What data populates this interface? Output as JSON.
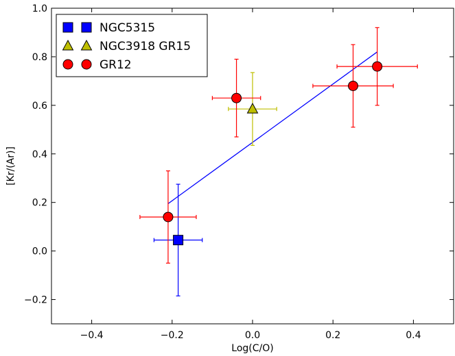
{
  "chart_data": {
    "type": "scatter",
    "xlabel": "Log(C/O)",
    "ylabel": "[Kr/(Ar)]",
    "xlim": [
      -0.5,
      0.5
    ],
    "ylim": [
      -0.3,
      1.0
    ],
    "xticks": [
      -0.4,
      -0.2,
      0.0,
      0.2,
      0.4
    ],
    "xtick_labels": [
      "−0.4",
      "−0.2",
      "0.0",
      "0.2",
      "0.4"
    ],
    "yticks": [
      -0.2,
      0.0,
      0.2,
      0.4,
      0.6,
      0.8,
      1.0
    ],
    "ytick_labels": [
      "−0.2",
      "0.0",
      "0.2",
      "0.4",
      "0.6",
      "0.8",
      "1.0"
    ],
    "grid": false,
    "legend_position": "top-left",
    "series": [
      {
        "name": "NGC5315",
        "marker": "square",
        "color": "#0000ff",
        "points": [
          {
            "x": -0.185,
            "y": 0.045,
            "xerr": 0.06,
            "yerr_low": 0.23,
            "yerr_high": 0.23
          }
        ]
      },
      {
        "name": "NGC3918 GR15",
        "marker": "triangle",
        "color": "#bfbf00",
        "points": [
          {
            "x": 0.0,
            "y": 0.585,
            "xerr": 0.06,
            "yerr_low": 0.15,
            "yerr_high": 0.15
          }
        ]
      },
      {
        "name": "GR12",
        "marker": "circle",
        "color": "#ff0000",
        "points": [
          {
            "x": -0.21,
            "y": 0.14,
            "xerr": 0.07,
            "yerr_low": 0.19,
            "yerr_high": 0.19
          },
          {
            "x": -0.04,
            "y": 0.63,
            "xerr": 0.06,
            "yerr_low": 0.16,
            "yerr_high": 0.16
          },
          {
            "x": 0.25,
            "y": 0.68,
            "xerr": 0.1,
            "yerr_low": 0.17,
            "yerr_high": 0.17
          },
          {
            "x": 0.31,
            "y": 0.76,
            "xerr": 0.1,
            "yerr_low": 0.16,
            "yerr_high": 0.16
          }
        ]
      }
    ],
    "fit_line": {
      "color": "#0000ff",
      "x": [
        -0.21,
        0.31
      ],
      "y": [
        0.195,
        0.82
      ]
    }
  }
}
